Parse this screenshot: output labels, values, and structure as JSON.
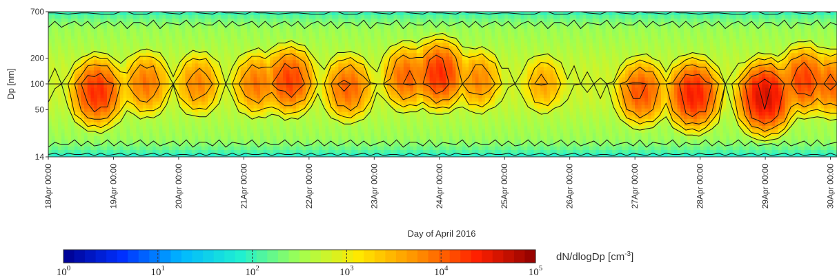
{
  "chart_data": {
    "type": "heatmap",
    "title": "",
    "xlabel": "Day of April 2016",
    "ylabel": "Dp [nm]",
    "y_scale": "log",
    "ylim": [
      14,
      700
    ],
    "y_ticks": [
      14,
      50,
      100,
      200,
      700
    ],
    "x_ticks": [
      "18Apr 00:00",
      "19Apr 00:00",
      "20Apr 00:00",
      "21Apr 00:00",
      "22Apr 00:00",
      "23Apr 00:00",
      "24Apr 00:00",
      "25Apr 00:00",
      "26Apr 00:00",
      "27Apr 00:00",
      "28Apr 00:00",
      "29Apr 00:00",
      "30Apr 00:00"
    ],
    "x_range_days": [
      18,
      30.1
    ],
    "colorbar": {
      "label": "dN/dlogDp [cm",
      "label_sup": "-3",
      "label_end": "]",
      "scale": "log",
      "range": [
        1,
        100000
      ],
      "tick_base": "10",
      "tick_exponents": [
        "0",
        "1",
        "2",
        "3",
        "4",
        "5"
      ],
      "colors": [
        "#00008f",
        "#0030ff",
        "#00b8ff",
        "#20f0d0",
        "#a0ff50",
        "#ffe800",
        "#ff9000",
        "#ff2000",
        "#8f0000"
      ]
    },
    "peaks": [
      {
        "day": 18.75,
        "dp": 80,
        "log10_n": 4.3
      },
      {
        "day": 19.5,
        "dp": 100,
        "log10_n": 3.9
      },
      {
        "day": 20.3,
        "dp": 100,
        "log10_n": 3.8
      },
      {
        "day": 21.2,
        "dp": 100,
        "log10_n": 3.9
      },
      {
        "day": 21.7,
        "dp": 110,
        "log10_n": 4.2
      },
      {
        "day": 22.6,
        "dp": 90,
        "log10_n": 4.0
      },
      {
        "day": 23.5,
        "dp": 120,
        "log10_n": 4.0
      },
      {
        "day": 24.0,
        "dp": 130,
        "log10_n": 4.3
      },
      {
        "day": 24.6,
        "dp": 110,
        "log10_n": 3.8
      },
      {
        "day": 25.6,
        "dp": 100,
        "log10_n": 3.6
      },
      {
        "day": 27.1,
        "dp": 80,
        "log10_n": 4.1
      },
      {
        "day": 27.9,
        "dp": 75,
        "log10_n": 4.4
      },
      {
        "day": 29.0,
        "dp": 70,
        "log10_n": 4.6
      },
      {
        "day": 29.6,
        "dp": 110,
        "log10_n": 4.2
      },
      {
        "day": 30.0,
        "dp": 100,
        "log10_n": 4.0
      }
    ],
    "grid": false
  }
}
